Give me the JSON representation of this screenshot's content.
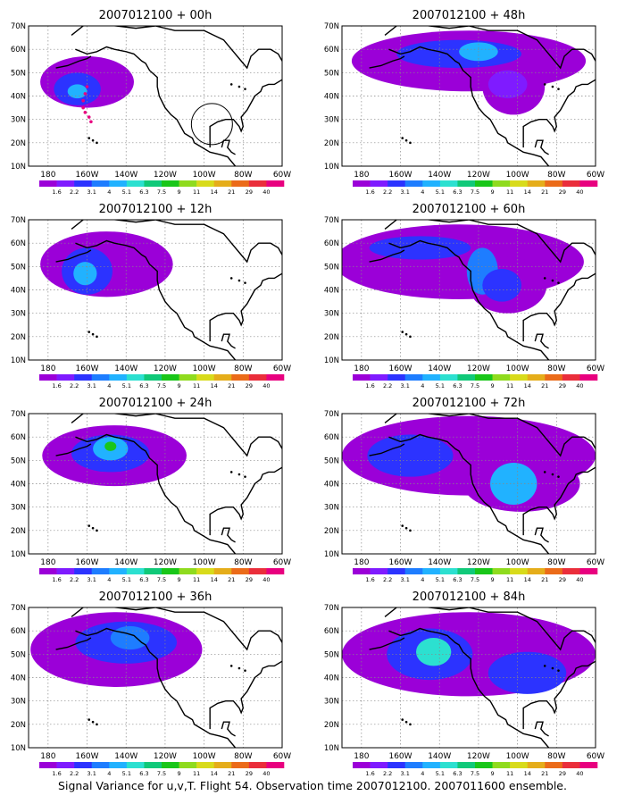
{
  "caption": "Signal Variance for u,v,T. Flight 54. Observation time 2007012100. 2007011600 ensemble.",
  "chart_data": {
    "type": "heatmap",
    "colorbar": {
      "labels": [
        "1.6",
        "2.2",
        "3.1",
        "4",
        "5.1",
        "6.3",
        "7.5",
        "9",
        "11",
        "14",
        "21",
        "29",
        "40"
      ],
      "colors": [
        "#9b00d8",
        "#7f1bff",
        "#2c33ff",
        "#1e7dff",
        "#21b2ff",
        "#2ce0d0",
        "#10c979",
        "#19c619",
        "#8fdb1e",
        "#d8db1b",
        "#e5ad1a",
        "#eb6b19",
        "#ea2e3b",
        "#e8007f"
      ]
    },
    "x_ticks": [
      "180",
      "160W",
      "140W",
      "120W",
      "100W",
      "80W",
      "60W"
    ],
    "y_ticks": [
      "10N",
      "20N",
      "30N",
      "40N",
      "50N",
      "60N",
      "70N"
    ],
    "lon_range": [
      -190,
      -60
    ],
    "lat_range": [
      10,
      70
    ],
    "panels": [
      {
        "title": "2007012100 + 00h",
        "blobs": [
          {
            "lon": -160,
            "lat": 46,
            "rx": 24,
            "ry": 11,
            "level": 0
          },
          {
            "lon": -165,
            "lat": 43,
            "rx": 12,
            "ry": 7,
            "level": 2
          },
          {
            "lon": -165,
            "lat": 42,
            "rx": 5,
            "ry": 3,
            "level": 4
          }
        ],
        "obs_track": [
          [
            -160,
            44
          ],
          [
            -161,
            41
          ],
          [
            -162,
            38
          ],
          [
            -162,
            35
          ],
          [
            -161,
            33
          ],
          [
            -159,
            31
          ],
          [
            -158,
            29
          ]
        ]
      },
      {
        "title": "2007012100 + 48h",
        "blobs": [
          {
            "lon": -125,
            "lat": 55,
            "rx": 60,
            "ry": 13,
            "level": 0
          },
          {
            "lon": -102,
            "lat": 44,
            "rx": 16,
            "ry": 12,
            "level": 0
          },
          {
            "lon": -130,
            "lat": 58,
            "rx": 32,
            "ry": 6,
            "level": 2
          },
          {
            "lon": -120,
            "lat": 59,
            "rx": 10,
            "ry": 4,
            "level": 4
          },
          {
            "lon": -105,
            "lat": 45,
            "rx": 10,
            "ry": 6,
            "level": 1
          }
        ]
      },
      {
        "title": "2007012100 + 12h",
        "blobs": [
          {
            "lon": -150,
            "lat": 51,
            "rx": 34,
            "ry": 14,
            "level": 0
          },
          {
            "lon": -160,
            "lat": 48,
            "rx": 13,
            "ry": 10,
            "level": 2
          },
          {
            "lon": -161,
            "lat": 47,
            "rx": 6,
            "ry": 5,
            "level": 4
          }
        ]
      },
      {
        "title": "2007012100 + 60h",
        "blobs": [
          {
            "lon": -130,
            "lat": 52,
            "rx": 64,
            "ry": 16,
            "level": 0
          },
          {
            "lon": -105,
            "lat": 42,
            "rx": 20,
            "ry": 12,
            "level": 0
          },
          {
            "lon": -150,
            "lat": 58,
            "rx": 26,
            "ry": 5,
            "level": 2
          },
          {
            "lon": -118,
            "lat": 48,
            "rx": 8,
            "ry": 10,
            "level": 3
          },
          {
            "lon": -108,
            "lat": 42,
            "rx": 10,
            "ry": 7,
            "level": 2
          }
        ]
      },
      {
        "title": "2007012100 + 24h",
        "blobs": [
          {
            "lon": -146,
            "lat": 52,
            "rx": 37,
            "ry": 13,
            "level": 0
          },
          {
            "lon": -148,
            "lat": 53,
            "rx": 20,
            "ry": 8,
            "level": 2
          },
          {
            "lon": -148,
            "lat": 55,
            "rx": 9,
            "ry": 5,
            "level": 4
          },
          {
            "lon": -148,
            "lat": 56,
            "rx": 3,
            "ry": 2,
            "level": 7
          }
        ]
      },
      {
        "title": "2007012100 + 72h",
        "blobs": [
          {
            "lon": -125,
            "lat": 52,
            "rx": 65,
            "ry": 17,
            "level": 0
          },
          {
            "lon": -98,
            "lat": 40,
            "rx": 30,
            "ry": 12,
            "level": 0
          },
          {
            "lon": -155,
            "lat": 52,
            "rx": 22,
            "ry": 9,
            "level": 2
          },
          {
            "lon": -102,
            "lat": 40,
            "rx": 12,
            "ry": 9,
            "level": 4
          }
        ]
      },
      {
        "title": "2007012100 + 36h",
        "blobs": [
          {
            "lon": -145,
            "lat": 52,
            "rx": 44,
            "ry": 16,
            "level": 0
          },
          {
            "lon": -140,
            "lat": 55,
            "rx": 26,
            "ry": 9,
            "level": 2
          },
          {
            "lon": -138,
            "lat": 57,
            "rx": 10,
            "ry": 5,
            "level": 3
          }
        ]
      },
      {
        "title": "2007012100 + 84h",
        "blobs": [
          {
            "lon": -125,
            "lat": 50,
            "rx": 65,
            "ry": 18,
            "level": 0
          },
          {
            "lon": -145,
            "lat": 50,
            "rx": 22,
            "ry": 11,
            "level": 2
          },
          {
            "lon": -143,
            "lat": 51,
            "rx": 9,
            "ry": 6,
            "level": 5
          },
          {
            "lon": -95,
            "lat": 42,
            "rx": 20,
            "ry": 9,
            "level": 2
          }
        ]
      }
    ]
  }
}
